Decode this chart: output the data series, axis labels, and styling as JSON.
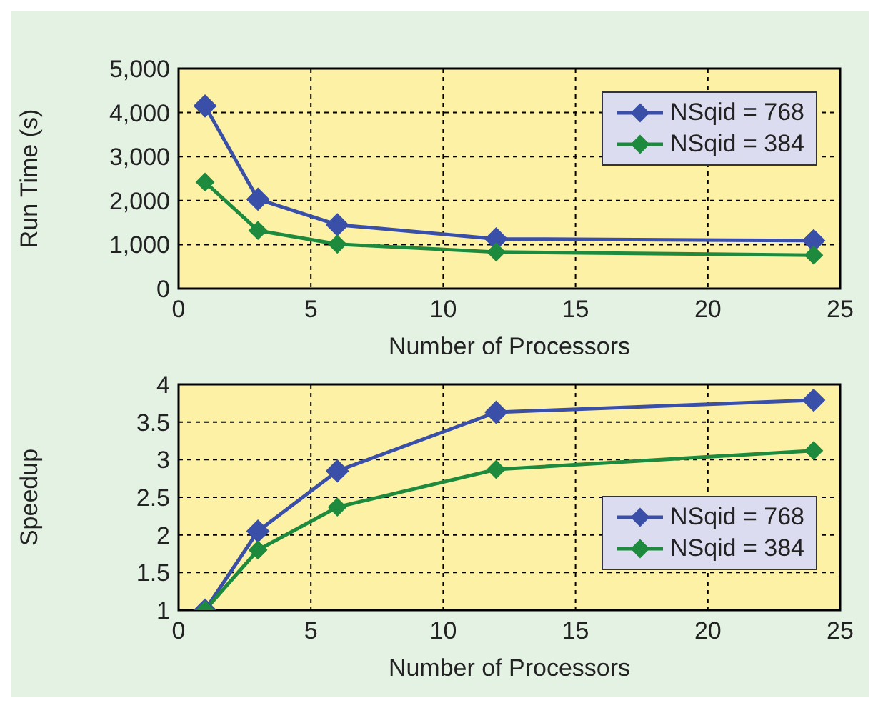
{
  "chart_data": [
    {
      "type": "line",
      "xlabel": "Number of Processors",
      "ylabel": "Run Time (s)",
      "x": [
        1,
        3,
        6,
        12,
        24
      ],
      "xlim": [
        0,
        25
      ],
      "xticks": [
        0,
        5,
        10,
        15,
        20,
        25
      ],
      "ylim": [
        0,
        5000
      ],
      "yticks": [
        {
          "value": 0,
          "label": "0"
        },
        {
          "value": 1000,
          "label": "1,000"
        },
        {
          "value": 2000,
          "label": "2,000"
        },
        {
          "value": 3000,
          "label": "3,000"
        },
        {
          "value": 4000,
          "label": "4,000"
        },
        {
          "value": 5000,
          "label": "5,000"
        }
      ],
      "grid": true,
      "legend": "top right",
      "marker": "diamond",
      "line_style": "solid",
      "series": [
        {
          "name": "NSqid = 768",
          "color": "#3a4fa8",
          "values": [
            4150,
            2030,
            1450,
            1130,
            1090
          ]
        },
        {
          "name": "NSqid = 384",
          "color": "#1e8a3e",
          "values": [
            2420,
            1320,
            1010,
            830,
            760
          ]
        }
      ]
    },
    {
      "type": "line",
      "xlabel": "Number of Processors",
      "ylabel": "Speedup",
      "x": [
        1,
        3,
        6,
        12,
        24
      ],
      "xlim": [
        0,
        25
      ],
      "xticks": [
        0,
        5,
        10,
        15,
        20,
        25
      ],
      "ylim": [
        1,
        4
      ],
      "yticks": [
        1,
        1.5,
        2,
        2.5,
        3,
        3.5,
        4
      ],
      "grid": true,
      "legend": "bottom right",
      "marker": "diamond",
      "line_style": "solid",
      "series": [
        {
          "name": "NSqid = 768",
          "color": "#3a4fa8",
          "values": [
            1,
            2.05,
            2.85,
            3.63,
            3.79
          ]
        },
        {
          "name": "NSqid = 384",
          "color": "#1e8a3e",
          "values": [
            1,
            1.8,
            2.37,
            2.87,
            3.12
          ]
        }
      ]
    }
  ]
}
